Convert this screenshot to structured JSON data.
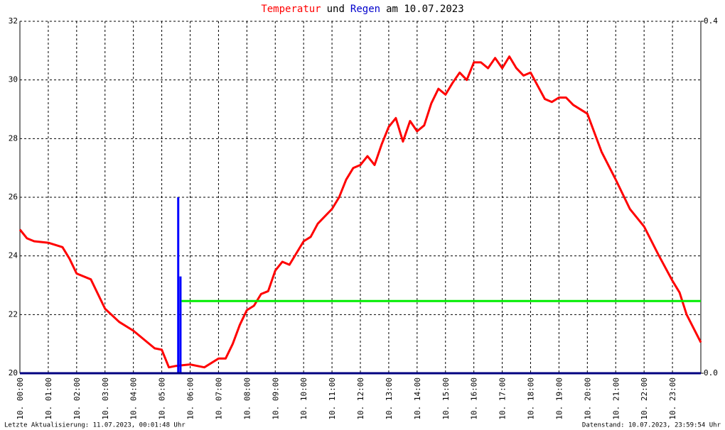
{
  "chart_data": {
    "type": "line",
    "title": [
      {
        "text": "Temperatur",
        "color": "#ff0000"
      },
      {
        "text": "und",
        "color": "#000000"
      },
      {
        "text": "Regen",
        "color": "#0000cc"
      },
      {
        "text": "am 10.07.2023",
        "color": "#000000"
      }
    ],
    "footer_left": "Letzte Aktualisierung: 11.07.2023, 00:01:48 Uhr",
    "footer_right": "Datenstand: 10.07.2023, 23:59:54 Uhr",
    "xlim": [
      0,
      24
    ],
    "xticks": [
      {
        "value": 0,
        "label": "10. 00:00"
      },
      {
        "value": 1,
        "label": "10. 01:00"
      },
      {
        "value": 2,
        "label": "10. 02:00"
      },
      {
        "value": 3,
        "label": "10. 03:00"
      },
      {
        "value": 4,
        "label": "10. 04:00"
      },
      {
        "value": 5,
        "label": "10. 05:00"
      },
      {
        "value": 6,
        "label": "10. 06:00"
      },
      {
        "value": 7,
        "label": "10. 07:00"
      },
      {
        "value": 8,
        "label": "10. 08:00"
      },
      {
        "value": 9,
        "label": "10. 09:00"
      },
      {
        "value": 10,
        "label": "10. 10:00"
      },
      {
        "value": 11,
        "label": "10. 11:00"
      },
      {
        "value": 12,
        "label": "10. 12:00"
      },
      {
        "value": 13,
        "label": "10. 13:00"
      },
      {
        "value": 14,
        "label": "10. 14:00"
      },
      {
        "value": 15,
        "label": "10. 15:00"
      },
      {
        "value": 16,
        "label": "10. 16:00"
      },
      {
        "value": 17,
        "label": "10. 17:00"
      },
      {
        "value": 18,
        "label": "10. 18:00"
      },
      {
        "value": 19,
        "label": "10. 19:00"
      },
      {
        "value": 20,
        "label": "10. 20:00"
      },
      {
        "value": 21,
        "label": "10. 21:00"
      },
      {
        "value": 22,
        "label": "10. 22:00"
      },
      {
        "value": 23,
        "label": "10. 23:00"
      }
    ],
    "ylim": [
      20,
      32
    ],
    "yticks": [
      20,
      22,
      24,
      26,
      28,
      30,
      32
    ],
    "y2lim": [
      0,
      0.4
    ],
    "y2ticks": [
      {
        "value": 0,
        "label": "0.0"
      },
      0.4
    ],
    "grid": true,
    "series": [
      {
        "name": "Temperatur",
        "type": "line",
        "color": "#ff0000",
        "x": [
          0,
          0.25,
          0.5,
          1,
          1.5,
          1.75,
          2,
          2.5,
          3,
          3.5,
          4,
          4.5,
          4.75,
          5,
          5.25,
          5.5,
          6,
          6.25,
          6.5,
          7,
          7.25,
          7.5,
          7.75,
          8,
          8.25,
          8.5,
          8.75,
          9,
          9.25,
          9.5,
          10,
          10.25,
          10.5,
          11,
          11.25,
          11.5,
          11.75,
          12,
          12.25,
          12.5,
          12.75,
          13,
          13.25,
          13.5,
          13.75,
          14,
          14.25,
          14.5,
          14.75,
          15,
          15.25,
          15.5,
          15.75,
          16,
          16.25,
          16.5,
          16.75,
          17,
          17.25,
          17.5,
          17.75,
          18,
          18.25,
          18.5,
          18.75,
          19,
          19.25,
          19.5,
          20,
          20.5,
          21,
          21.5,
          22,
          22.5,
          23,
          23.25,
          23.5,
          24
        ],
        "values": [
          24.9,
          24.6,
          24.5,
          24.45,
          24.3,
          23.9,
          23.4,
          23.2,
          22.2,
          21.75,
          21.45,
          21.05,
          20.85,
          20.8,
          20.2,
          20.25,
          20.3,
          20.25,
          20.2,
          20.5,
          20.5,
          21.0,
          21.65,
          22.15,
          22.3,
          22.7,
          22.8,
          23.5,
          23.8,
          23.7,
          24.5,
          24.65,
          25.1,
          25.6,
          26.0,
          26.6,
          27.0,
          27.1,
          27.4,
          27.1,
          27.8,
          28.4,
          28.7,
          27.9,
          28.6,
          28.25,
          28.45,
          29.2,
          29.7,
          29.5,
          29.9,
          30.25,
          30.0,
          30.6,
          30.6,
          30.4,
          30.75,
          30.4,
          30.8,
          30.4,
          30.15,
          30.25,
          29.8,
          29.35,
          29.25,
          29.4,
          29.4,
          29.15,
          28.85,
          27.55,
          26.6,
          25.6,
          25.0,
          24.05,
          23.15,
          22.75,
          22.0,
          21.05
        ]
      },
      {
        "name": "Regen",
        "type": "bar",
        "axis": "y2",
        "color": "#0000ff",
        "x": [
          5.58,
          5.66
        ],
        "values": [
          0.2,
          0.11
        ]
      },
      {
        "type": "line",
        "axis": "y2",
        "color": "#00ee00",
        "x": [
          5.7,
          24
        ],
        "values": [
          0.082,
          0.082
        ]
      }
    ]
  }
}
